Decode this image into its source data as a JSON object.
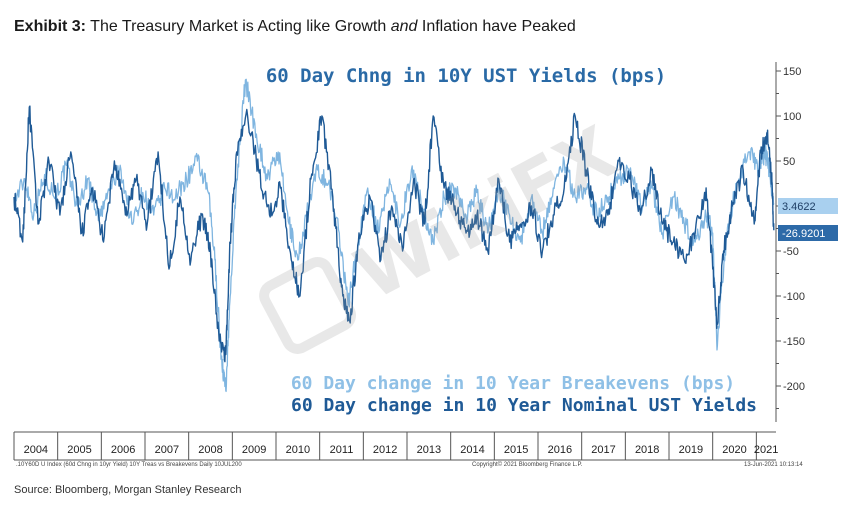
{
  "header": {
    "exhibit_label": "Exhibit 3:",
    "title_part1": "The Treasury Market is Acting like Growth",
    "title_italic": "and",
    "title_part2": "Inflation have Peaked"
  },
  "chart_data": {
    "type": "line",
    "title": "60 Day Chng in 10Y UST Yields (bps)",
    "ylim": [
      -240,
      160
    ],
    "xlim": [
      2004.0,
      2021.45
    ],
    "yticks": [
      150,
      100,
      50,
      -50,
      -100,
      -150,
      -200
    ],
    "year_labels": [
      "2004",
      "2005",
      "2006",
      "2007",
      "2008",
      "2009",
      "2010",
      "2011",
      "2012",
      "2013",
      "2014",
      "2015",
      "2016",
      "2017",
      "2018",
      "2019",
      "2020",
      "2021"
    ],
    "series": [
      {
        "name": "60 Day change in 10 Year Breakevens (bps)",
        "color": "#7fb5e0",
        "last_value_label": "3.4622",
        "x": [
          2004.0,
          2004.25,
          2004.45,
          2004.7,
          2004.95,
          2005.2,
          2005.45,
          2005.7,
          2005.95,
          2006.2,
          2006.45,
          2006.7,
          2006.95,
          2007.2,
          2007.45,
          2007.7,
          2007.95,
          2008.2,
          2008.45,
          2008.6,
          2008.75,
          2008.85,
          2008.95,
          2009.1,
          2009.3,
          2009.55,
          2009.8,
          2010.05,
          2010.3,
          2010.5,
          2010.7,
          2010.95,
          2011.2,
          2011.45,
          2011.65,
          2011.85,
          2012.1,
          2012.35,
          2012.6,
          2012.85,
          2013.1,
          2013.35,
          2013.6,
          2013.85,
          2014.1,
          2014.35,
          2014.6,
          2014.85,
          2015.1,
          2015.35,
          2015.6,
          2015.85,
          2016.1,
          2016.35,
          2016.6,
          2016.85,
          2017.1,
          2017.35,
          2017.6,
          2017.85,
          2018.1,
          2018.35,
          2018.6,
          2018.85,
          2019.1,
          2019.35,
          2019.6,
          2019.85,
          2020.0,
          2020.1,
          2020.2,
          2020.35,
          2020.6,
          2020.85,
          2021.05,
          2021.2,
          2021.3,
          2021.4
        ],
        "y": [
          5,
          30,
          -10,
          35,
          10,
          45,
          0,
          30,
          -15,
          20,
          40,
          -20,
          15,
          -10,
          20,
          10,
          30,
          50,
          15,
          -60,
          -170,
          -205,
          -100,
          30,
          140,
          80,
          30,
          60,
          -20,
          -60,
          -10,
          40,
          25,
          -30,
          -110,
          -50,
          20,
          -30,
          30,
          -20,
          40,
          0,
          -40,
          10,
          20,
          -10,
          15,
          -30,
          20,
          -10,
          -40,
          10,
          -30,
          20,
          50,
          10,
          20,
          -10,
          10,
          30,
          40,
          0,
          20,
          -30,
          10,
          -20,
          -40,
          -10,
          -30,
          -160,
          -90,
          -20,
          30,
          60,
          40,
          60,
          40,
          3
        ]
      },
      {
        "name": "60 Day change in 10 Year Nominal UST Yields",
        "color": "#1f5a96",
        "last_value_label": "-26.9201",
        "x": [
          2004.0,
          2004.2,
          2004.35,
          2004.55,
          2004.8,
          2005.05,
          2005.3,
          2005.55,
          2005.8,
          2006.05,
          2006.3,
          2006.55,
          2006.8,
          2007.05,
          2007.3,
          2007.55,
          2007.8,
          2008.05,
          2008.3,
          2008.5,
          2008.7,
          2008.85,
          2008.95,
          2009.1,
          2009.35,
          2009.6,
          2009.85,
          2010.1,
          2010.35,
          2010.55,
          2010.8,
          2011.05,
          2011.3,
          2011.5,
          2011.7,
          2011.9,
          2012.15,
          2012.4,
          2012.65,
          2012.9,
          2013.15,
          2013.4,
          2013.6,
          2013.85,
          2014.1,
          2014.35,
          2014.6,
          2014.85,
          2015.1,
          2015.35,
          2015.6,
          2015.85,
          2016.1,
          2016.35,
          2016.6,
          2016.85,
          2017.1,
          2017.35,
          2017.6,
          2017.85,
          2018.1,
          2018.35,
          2018.6,
          2018.85,
          2019.1,
          2019.35,
          2019.6,
          2019.85,
          2020.0,
          2020.1,
          2020.25,
          2020.45,
          2020.7,
          2020.95,
          2021.1,
          2021.25,
          2021.35,
          2021.4
        ],
        "y": [
          10,
          -40,
          110,
          -20,
          50,
          -10,
          60,
          -30,
          20,
          -40,
          50,
          -10,
          30,
          -20,
          60,
          -70,
          10,
          -60,
          -10,
          -50,
          -150,
          -165,
          -40,
          60,
          100,
          40,
          -10,
          20,
          -60,
          -100,
          30,
          100,
          10,
          -90,
          -130,
          -30,
          10,
          -60,
          0,
          -50,
          30,
          -20,
          100,
          20,
          0,
          -30,
          -10,
          -50,
          30,
          -40,
          -20,
          0,
          -50,
          -10,
          20,
          100,
          40,
          -20,
          -10,
          50,
          30,
          -10,
          40,
          -20,
          -40,
          -60,
          -30,
          20,
          -70,
          -130,
          -50,
          0,
          40,
          -20,
          60,
          80,
          30,
          -27
        ]
      }
    ]
  },
  "footer": {
    "index_note": ".10Y60D U Index (60d Chng in 10yr Yield) 10Y Treas vs Breakevens  Daily 10JUL200",
    "copyright": "Copyright© 2021 Bloomberg Finance L.P.",
    "timestamp": "13-Jun-2021 10:13:14"
  },
  "source": "Source: Bloomberg, Morgan Stanley Research",
  "watermark_text": "WikiFX"
}
